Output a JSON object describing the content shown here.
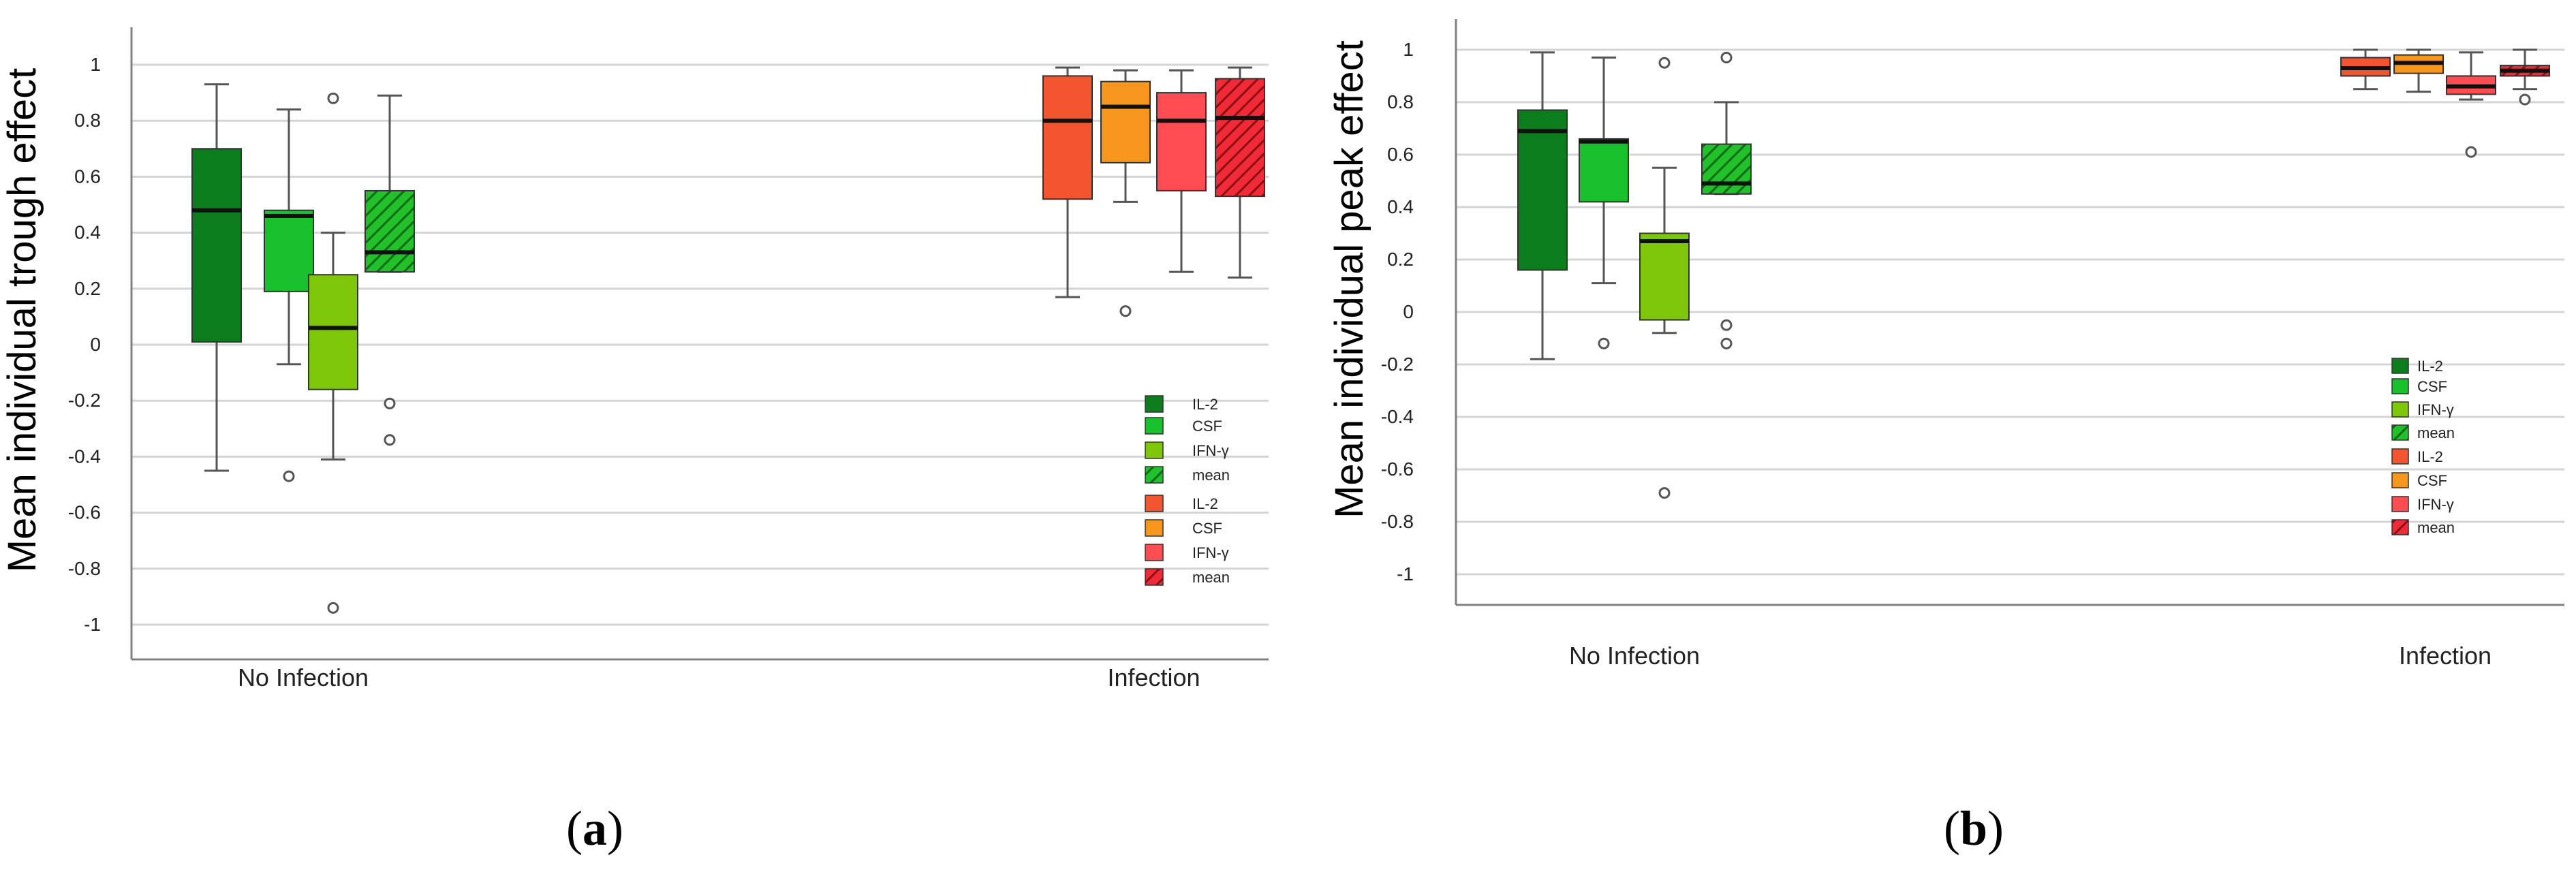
{
  "figure": {
    "panels": [
      {
        "label_open": "(",
        "label_letter": "a",
        "label_close": ")"
      },
      {
        "label_open": "(",
        "label_letter": "b",
        "label_close": ")"
      }
    ]
  },
  "colors": {
    "no_infection": {
      "il2": "#0b7d1c",
      "csf": "#18c02c",
      "ifng": "#7dc60a",
      "mean": "#22c02a"
    },
    "infection": {
      "il2": "#f25530",
      "csf": "#f7961c",
      "ifng": "#ff4b52",
      "mean": "#f02a36"
    },
    "axis": "#808080",
    "grid": "#d4d4d4",
    "whisker": "#555555",
    "median": "#111111"
  },
  "chart_data": [
    {
      "type": "boxplot",
      "title": "",
      "xlabel": "",
      "ylabel": "Mean individual trough effect",
      "ylim": [
        -1.1,
        1.1
      ],
      "yticks": [
        -1,
        -0.8,
        -0.6,
        -0.4,
        -0.2,
        0,
        0.2,
        0.4,
        0.6,
        0.8,
        1
      ],
      "ytick_labels": [
        "-1",
        "-0.8",
        "-0.6",
        "-0.4",
        "-0.2",
        "0",
        "0.2",
        "0.4",
        "0.6",
        "0.8",
        "1"
      ],
      "categories": [
        "No Infection",
        "Infection"
      ],
      "grid": true,
      "legend_position": "right",
      "legend": [
        {
          "label": "IL-2",
          "group": "no_infection",
          "series": "il2",
          "hatched": false
        },
        {
          "label": "CSF",
          "group": "no_infection",
          "series": "csf",
          "hatched": false
        },
        {
          "label": "IFN-γ",
          "group": "no_infection",
          "series": "ifng",
          "hatched": false
        },
        {
          "label": "mean",
          "group": "no_infection",
          "series": "mean",
          "hatched": true
        },
        {
          "label": "IL-2",
          "group": "infection",
          "series": "il2",
          "hatched": false
        },
        {
          "label": "CSF",
          "group": "infection",
          "series": "csf",
          "hatched": false
        },
        {
          "label": "IFN-γ",
          "group": "infection",
          "series": "ifng",
          "hatched": false
        },
        {
          "label": "mean",
          "group": "infection",
          "series": "mean",
          "hatched": true
        }
      ],
      "groups": [
        {
          "category": "No Infection",
          "boxes": [
            {
              "series": "IL-2",
              "key": "il2",
              "min": -0.45,
              "q1": 0.01,
              "median": 0.48,
              "q3": 0.7,
              "max": 0.93,
              "outliers": []
            },
            {
              "series": "CSF",
              "key": "csf",
              "min": -0.07,
              "q1": 0.19,
              "median": 0.46,
              "q3": 0.48,
              "max": 0.84,
              "outliers": [
                -0.47
              ]
            },
            {
              "series": "IFN-γ",
              "key": "ifng",
              "min": -0.41,
              "q1": -0.16,
              "median": 0.06,
              "q3": 0.25,
              "max": 0.4,
              "outliers": [
                0.88,
                -0.94
              ]
            },
            {
              "series": "mean",
              "key": "mean",
              "min": 0.26,
              "q1": 0.26,
              "median": 0.33,
              "q3": 0.55,
              "max": 0.89,
              "outliers": [
                -0.21,
                -0.34
              ]
            }
          ]
        },
        {
          "category": "Infection",
          "boxes": [
            {
              "series": "IL-2",
              "key": "il2",
              "min": 0.17,
              "q1": 0.52,
              "median": 0.8,
              "q3": 0.96,
              "max": 0.99,
              "outliers": []
            },
            {
              "series": "CSF",
              "key": "csf",
              "min": 0.51,
              "q1": 0.65,
              "median": 0.85,
              "q3": 0.94,
              "max": 0.98,
              "outliers": [
                0.12
              ]
            },
            {
              "series": "IFN-γ",
              "key": "ifng",
              "min": 0.26,
              "q1": 0.55,
              "median": 0.8,
              "q3": 0.9,
              "max": 0.98,
              "outliers": []
            },
            {
              "series": "mean",
              "key": "mean",
              "min": 0.24,
              "q1": 0.53,
              "median": 0.81,
              "q3": 0.95,
              "max": 0.99,
              "outliers": []
            }
          ]
        }
      ]
    },
    {
      "type": "boxplot",
      "title": "",
      "xlabel": "",
      "ylabel": "Mean individual  peak effect",
      "ylim": [
        -1.1,
        1.1
      ],
      "yticks": [
        -1,
        -0.8,
        -0.6,
        -0.4,
        -0.2,
        0,
        0.2,
        0.4,
        0.6,
        0.8,
        1
      ],
      "ytick_labels": [
        "-1",
        "-0.8",
        "-0.6",
        "-0.4",
        "-0.2",
        "0",
        "0.2",
        "0.4",
        "0.6",
        "0.8",
        "1"
      ],
      "categories": [
        "No Infection",
        "Infection"
      ],
      "grid": true,
      "legend_position": "right",
      "legend": [
        {
          "label": "IL-2",
          "group": "no_infection",
          "series": "il2",
          "hatched": false
        },
        {
          "label": "CSF",
          "group": "no_infection",
          "series": "csf",
          "hatched": false
        },
        {
          "label": "IFN-γ",
          "group": "no_infection",
          "series": "ifng",
          "hatched": false
        },
        {
          "label": "mean",
          "group": "no_infection",
          "series": "mean",
          "hatched": true
        },
        {
          "label": "IL-2",
          "group": "infection",
          "series": "il2",
          "hatched": false
        },
        {
          "label": "CSF",
          "group": "infection",
          "series": "csf",
          "hatched": false
        },
        {
          "label": "IFN-γ",
          "group": "infection",
          "series": "ifng",
          "hatched": false
        },
        {
          "label": "mean",
          "group": "infection",
          "series": "mean",
          "hatched": true
        }
      ],
      "groups": [
        {
          "category": "No Infection",
          "boxes": [
            {
              "series": "IL-2",
              "key": "il2",
              "min": -0.18,
              "q1": 0.16,
              "median": 0.69,
              "q3": 0.77,
              "max": 0.99,
              "outliers": []
            },
            {
              "series": "CSF",
              "key": "csf",
              "min": 0.11,
              "q1": 0.42,
              "median": 0.65,
              "q3": 0.66,
              "max": 0.97,
              "outliers": [
                -0.12
              ]
            },
            {
              "series": "IFN-γ",
              "key": "ifng",
              "min": -0.08,
              "q1": -0.03,
              "median": 0.27,
              "q3": 0.3,
              "max": 0.55,
              "outliers": [
                0.95,
                -0.69
              ]
            },
            {
              "series": "mean",
              "key": "mean",
              "min": 0.45,
              "q1": 0.45,
              "median": 0.49,
              "q3": 0.64,
              "max": 0.8,
              "outliers": [
                0.97,
                -0.05,
                -0.12
              ]
            }
          ]
        },
        {
          "category": "Infection",
          "boxes": [
            {
              "series": "IL-2",
              "key": "il2",
              "min": 0.85,
              "q1": 0.9,
              "median": 0.93,
              "q3": 0.97,
              "max": 1.0,
              "outliers": []
            },
            {
              "series": "CSF",
              "key": "csf",
              "min": 0.84,
              "q1": 0.91,
              "median": 0.95,
              "q3": 0.98,
              "max": 1.0,
              "outliers": []
            },
            {
              "series": "IFN-γ",
              "key": "ifng",
              "min": 0.81,
              "q1": 0.83,
              "median": 0.86,
              "q3": 0.9,
              "max": 0.99,
              "outliers": [
                0.61
              ]
            },
            {
              "series": "mean",
              "key": "mean",
              "min": 0.85,
              "q1": 0.9,
              "median": 0.92,
              "q3": 0.94,
              "max": 1.0,
              "outliers": [
                0.81
              ]
            }
          ]
        }
      ]
    }
  ]
}
